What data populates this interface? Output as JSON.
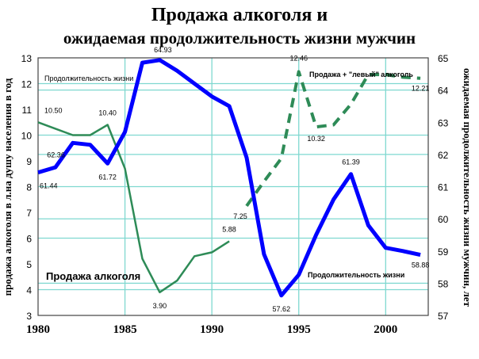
{
  "chart_data": {
    "type": "line",
    "title": [
      "Продажа алкоголя и",
      "ожидаемая продолжительность жизни мужчин"
    ],
    "ylabel_left": "продажа алкоголя в л.на душу населения в год",
    "ylabel_right": "ожидаемая продолжительность жизни мужчин, лет",
    "xlim": [
      1980,
      2002.45
    ],
    "ylim_left": [
      3,
      13
    ],
    "ylim_right": [
      57,
      65
    ],
    "x_ticks": [
      "1980",
      "1985",
      "1990",
      "1995",
      "2000"
    ],
    "y_ticks_left": [
      "3",
      "4",
      "5",
      "6",
      "7",
      "8",
      "9",
      "10",
      "11",
      "12",
      "13"
    ],
    "y_ticks_right": [
      "57",
      "58",
      "59",
      "60",
      "61",
      "62",
      "63",
      "64",
      "65"
    ],
    "grid": true,
    "colors": {
      "alcohol": "#2e8b57",
      "life": "#0000ff",
      "grid": "#7fd8d0"
    },
    "series": [
      {
        "name": "Продажа алкоголя",
        "axis": "left",
        "style": "solid",
        "x": [
          1980,
          1981,
          1982,
          1983,
          1984,
          1985,
          1986,
          1987,
          1988,
          1989,
          1990,
          1991
        ],
        "values": [
          10.5,
          10.25,
          10.0,
          10.0,
          10.4,
          8.7,
          5.2,
          3.9,
          4.35,
          5.3,
          5.45,
          5.88
        ]
      },
      {
        "name": "Продажа + \"левый\" алкоголь",
        "axis": "left",
        "style": "dashed",
        "x": [
          1992,
          1993,
          1994,
          1995,
          1996,
          1997,
          1998,
          1999,
          2000,
          2001,
          2002
        ],
        "values": [
          7.25,
          8.2,
          9.1,
          12.46,
          10.32,
          10.4,
          11.2,
          12.35,
          12.35,
          12.25,
          12.21
        ]
      },
      {
        "name": "Продолжительность жизни",
        "axis": "right",
        "style": "solid",
        "x": [
          1980,
          1981,
          1982,
          1983,
          1984,
          1985,
          1986,
          1987,
          1988,
          1989,
          1990,
          1991,
          1992,
          1993,
          1994,
          1995,
          1996,
          1997,
          1998,
          1999,
          2000,
          2001,
          2002
        ],
        "values": [
          61.44,
          61.6,
          62.36,
          62.3,
          61.72,
          62.7,
          64.85,
          64.93,
          64.6,
          64.2,
          63.8,
          63.5,
          61.9,
          58.9,
          57.62,
          58.26,
          59.5,
          60.6,
          61.39,
          59.8,
          59.1,
          59.0,
          58.88
        ]
      }
    ],
    "data_labels": [
      {
        "text": "10.50",
        "series": 0,
        "index": 0
      },
      {
        "text": "10.40",
        "series": 0,
        "index": 4
      },
      {
        "text": "3.90",
        "series": 0,
        "index": 7
      },
      {
        "text": "5.88",
        "series": 0,
        "index": 11
      },
      {
        "text": "7.25",
        "series": 1,
        "index": 0
      },
      {
        "text": "12.46",
        "series": 1,
        "index": 3
      },
      {
        "text": "10.32",
        "series": 1,
        "index": 4
      },
      {
        "text": "12.21",
        "series": 1,
        "index": 10
      },
      {
        "text": "61.44",
        "series": 2,
        "index": 0
      },
      {
        "text": "62.36",
        "series": 2,
        "index": 2
      },
      {
        "text": "61.72",
        "series": 2,
        "index": 4
      },
      {
        "text": "64.93",
        "series": 2,
        "index": 7
      },
      {
        "text": "57.62",
        "series": 2,
        "index": 14
      },
      {
        "text": "61.39",
        "series": 2,
        "index": 18
      },
      {
        "text": "58.88",
        "series": 2,
        "index": 22
      }
    ],
    "annotations": {
      "life_top": "Продолжительность жизни",
      "alcohol": "Продажа алкоголя",
      "alcohol_plus": "Продажа + \"левый\" алкоголь",
      "life_bottom": "Продолжительность жизни"
    }
  }
}
